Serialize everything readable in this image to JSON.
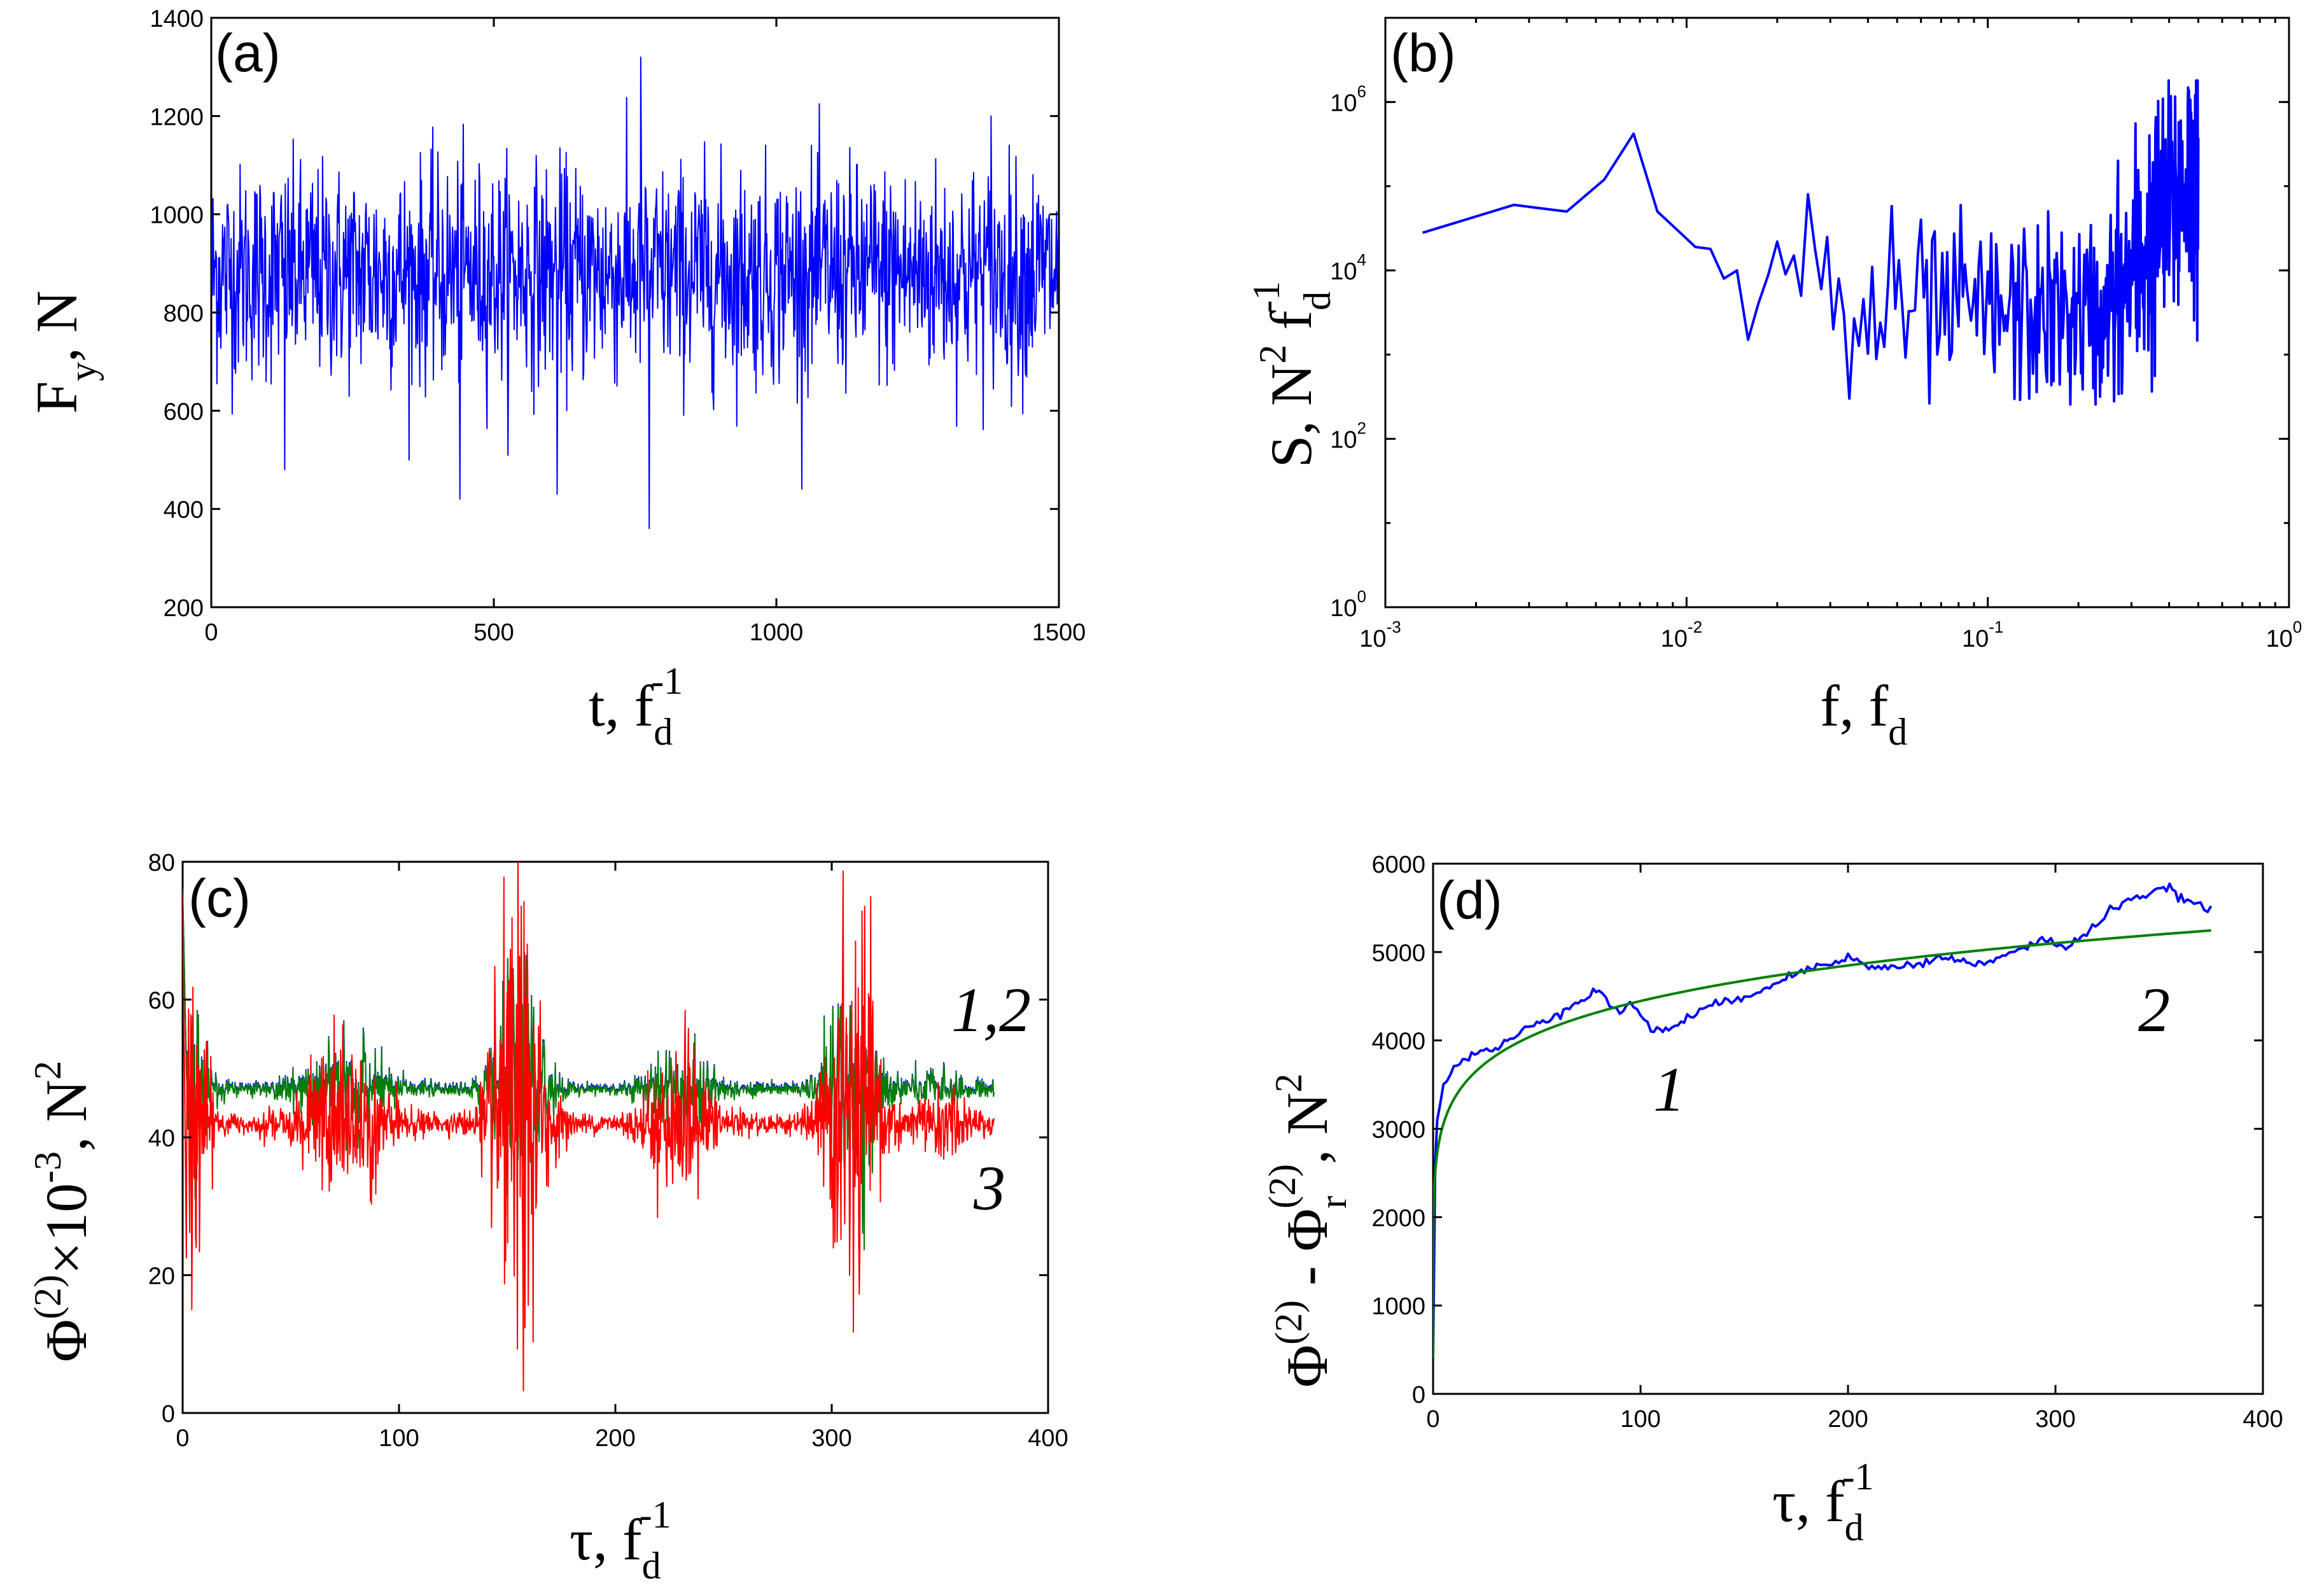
{
  "chart_data": [
    {
      "type": "line",
      "panel_label": "(a)",
      "xlabel": {
        "main": "t, f",
        "sub": "d",
        "sup": "-1"
      },
      "ylabel": {
        "main": "F",
        "sub": "y",
        "tail": ", N"
      },
      "xlim": [
        0,
        1500
      ],
      "ylim": [
        200,
        1400
      ],
      "xticks": [
        0,
        500,
        1000,
        1500
      ],
      "yticks": [
        200,
        400,
        600,
        800,
        1000,
        1200,
        1400
      ],
      "series": [
        {
          "color": "#0000ff",
          "mean": 880,
          "sigma": 95,
          "n_points": 1500,
          "min": 360,
          "max": 1320,
          "description_points": [
            [
              0,
              900
            ],
            [
              130,
              480
            ],
            [
              440,
              420
            ],
            [
              612,
              430
            ],
            [
              760,
              1320
            ],
            [
              775,
              360
            ],
            [
              1380,
              1200
            ]
          ]
        }
      ]
    },
    {
      "type": "line",
      "panel_label": "(b)",
      "xlabel": {
        "main": "f,  f",
        "sub": "d"
      },
      "ylabel": {
        "main": "S, N",
        "sup1": "2",
        "mid": " f",
        "sub": "d",
        "sup2": "-1"
      },
      "xscale": "log",
      "yscale": "log",
      "xlim": [
        0.001,
        1
      ],
      "ylim": [
        1,
        10000000
      ],
      "xticks": [
        {
          "base": "10",
          "exp": "-3",
          "v": 0.001
        },
        {
          "base": "10",
          "exp": "-2",
          "v": 0.01
        },
        {
          "base": "10",
          "exp": "-1",
          "v": 0.1
        },
        {
          "base": "10",
          "exp": "0",
          "v": 1
        }
      ],
      "yticks": [
        {
          "base": "10",
          "exp": "0",
          "v": 1
        },
        {
          "base": "10",
          "exp": "2",
          "v": 100
        },
        {
          "base": "10",
          "exp": "4",
          "v": 10000
        },
        {
          "base": "10",
          "exp": "6",
          "v": 1000000
        }
      ],
      "series": [
        {
          "color": "#0000ff",
          "points": [
            [
              0.00133,
              28000
            ],
            [
              0.00267,
              60000
            ],
            [
              0.004,
              50000
            ],
            [
              0.00533,
              120000
            ],
            [
              0.00667,
              420000
            ],
            [
              0.008,
              50000
            ],
            [
              0.00933,
              30000
            ],
            [
              0.0107,
              19000
            ],
            [
              0.012,
              18000
            ],
            [
              0.0133,
              8000
            ],
            [
              0.0147,
              10000
            ],
            [
              0.016,
              1500
            ],
            [
              0.0173,
              4000
            ],
            [
              0.0187,
              9000
            ],
            [
              0.02,
              22000
            ],
            [
              0.0213,
              9000
            ],
            [
              0.0227,
              15000
            ],
            [
              0.024,
              5000
            ],
            [
              0.0253,
              80000
            ],
            [
              0.0267,
              18000
            ],
            [
              0.028,
              6000
            ],
            [
              0.0293,
              25000
            ],
            [
              0.0307,
              2000
            ],
            [
              0.032,
              8000
            ],
            [
              0.0333,
              3000
            ],
            [
              0.0347,
              300
            ]
          ]
        }
      ]
    },
    {
      "type": "line",
      "panel_label": "(c)",
      "xlabel": {
        "main": "τ, f",
        "sub": "d",
        "sup": "-1"
      },
      "ylabel": {
        "main": "Φ",
        "sup1": "(2)",
        "mid": "×10",
        "sup2": "-3",
        "tail": ", N",
        "sup3": "2"
      },
      "xlim": [
        0,
        400
      ],
      "ylim": [
        0,
        80
      ],
      "xticks": [
        0,
        100,
        200,
        300,
        400
      ],
      "yticks": [
        0,
        20,
        40,
        60,
        80
      ],
      "annotations": [
        "1,2",
        "3"
      ],
      "series": [
        {
          "color": "#0000ff",
          "base": 47,
          "note": "curve 1, overlapped by curve 2"
        },
        {
          "color": "#008000",
          "base": 47,
          "note": "curve 2"
        },
        {
          "color": "#ff0000",
          "base": 42,
          "note": "curve 3",
          "features": [
            [
              0,
              76
            ],
            [
              1,
              5
            ],
            [
              155,
              8
            ],
            [
              154,
              70
            ],
            [
              310,
              14
            ],
            [
              309,
              68
            ]
          ]
        }
      ]
    },
    {
      "type": "line",
      "panel_label": "(d)",
      "xlabel": {
        "main": "τ, f",
        "sub": "d",
        "sup": "-1"
      },
      "ylabel": {
        "main": "Φ",
        "sup1": "(2)",
        "mid": " - Φ",
        "sub": "r",
        "sup2": "(2)",
        "tail": ", N",
        "sup3": "2"
      },
      "xlim": [
        0,
        400
      ],
      "ylim": [
        0,
        6000
      ],
      "xticks": [
        0,
        100,
        200,
        300,
        400
      ],
      "yticks": [
        0,
        1000,
        2000,
        3000,
        4000,
        5000,
        6000
      ],
      "annotations": [
        "1",
        "2"
      ],
      "series": [
        {
          "color": "#0000ff",
          "points": [
            [
              0,
              400
            ],
            [
              1,
              2600
            ],
            [
              2,
              3100
            ],
            [
              5,
              3500
            ],
            [
              10,
              3700
            ],
            [
              20,
              3850
            ],
            [
              30,
              3900
            ],
            [
              40,
              4050
            ],
            [
              50,
              4200
            ],
            [
              60,
              4300
            ],
            [
              70,
              4450
            ],
            [
              80,
              4580
            ],
            [
              85,
              4400
            ],
            [
              90,
              4300
            ],
            [
              95,
              4450
            ],
            [
              100,
              4300
            ],
            [
              105,
              4100
            ],
            [
              115,
              4150
            ],
            [
              130,
              4350
            ],
            [
              150,
              4500
            ],
            [
              170,
              4700
            ],
            [
              185,
              4850
            ],
            [
              200,
              4950
            ],
            [
              210,
              4820
            ],
            [
              230,
              4850
            ],
            [
              250,
              4950
            ],
            [
              260,
              4850
            ],
            [
              270,
              4900
            ],
            [
              285,
              5050
            ],
            [
              295,
              5150
            ],
            [
              305,
              5050
            ],
            [
              315,
              5200
            ],
            [
              325,
              5450
            ],
            [
              335,
              5600
            ],
            [
              345,
              5650
            ],
            [
              355,
              5720
            ],
            [
              362,
              5600
            ],
            [
              370,
              5500
            ],
            [
              375,
              5520
            ]
          ]
        },
        {
          "color": "#008000",
          "fit": "power",
          "note": "smooth fit curve 2"
        }
      ]
    }
  ]
}
